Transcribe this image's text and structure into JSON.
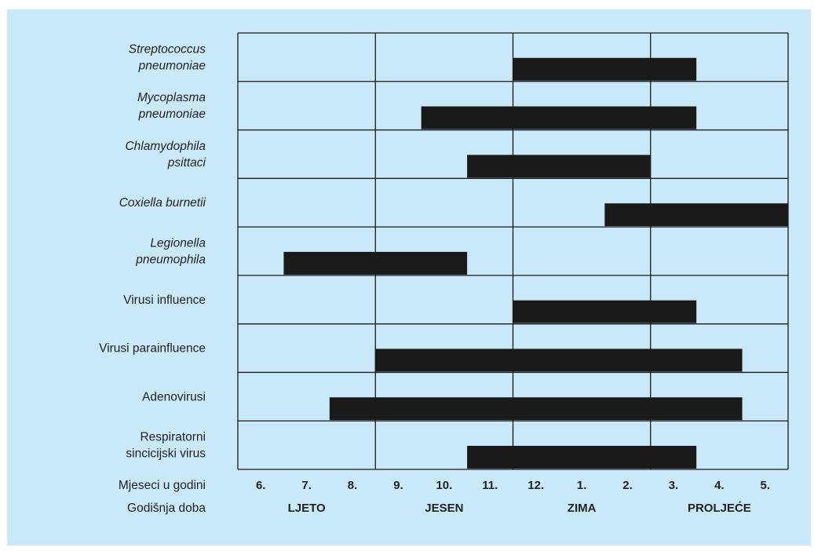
{
  "chart_data": {
    "type": "gantt",
    "title": "",
    "colors": {
      "bar": "#1a1a1a",
      "background": "#c9e8f8",
      "grid": "#1a1a1a"
    },
    "months": [
      "6.",
      "7.",
      "8.",
      "9.",
      "10.",
      "11.",
      "12.",
      "1.",
      "2.",
      "3.",
      "4.",
      "5."
    ],
    "seasons": [
      {
        "label": "LJETO",
        "from": 0,
        "to": 3
      },
      {
        "label": "JESEN",
        "from": 3,
        "to": 6
      },
      {
        "label": "ZIMA",
        "from": 6,
        "to": 9
      },
      {
        "label": "PROLJEĆE",
        "from": 9,
        "to": 12
      }
    ],
    "month_row_label": "Mjeseci u godini",
    "season_row_label": "Godišnja doba",
    "rows": [
      {
        "label": [
          "Streptococcus",
          "pneumoniae"
        ],
        "italic": true,
        "start": 6,
        "end": 10
      },
      {
        "label": [
          "Mycoplasma",
          "pneumoniae"
        ],
        "italic": true,
        "start": 4,
        "end": 10
      },
      {
        "label": [
          "Chlamydophila",
          "psittaci"
        ],
        "italic": true,
        "start": 5,
        "end": 9
      },
      {
        "label": [
          "Coxiella burnetii"
        ],
        "italic": true,
        "start": 8,
        "end": 12
      },
      {
        "label": [
          "Legionella",
          "pneumophila"
        ],
        "italic": true,
        "start": 1,
        "end": 5
      },
      {
        "label": [
          "Virusi influence"
        ],
        "italic": false,
        "start": 6,
        "end": 10
      },
      {
        "label": [
          "Virusi parainfluence"
        ],
        "italic": false,
        "start": 3,
        "end": 11
      },
      {
        "label": [
          "Adenovirusi"
        ],
        "italic": false,
        "start": 2,
        "end": 11
      },
      {
        "label": [
          "Respiratorni",
          "sincicijski virus"
        ],
        "italic": false,
        "start": 5,
        "end": 10
      }
    ]
  }
}
